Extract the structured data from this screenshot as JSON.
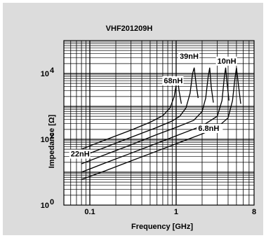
{
  "chart_data": {
    "type": "line",
    "title": "VHF201209H",
    "xlabel": "Frequency [GHz]",
    "ylabel": "Impedance [Ω]",
    "x_scale": "log",
    "y_scale": "log",
    "xlim": [
      0.05,
      8
    ],
    "ylim": [
      1,
      100000
    ],
    "grid": true,
    "x_ticks": [
      {
        "label": "0.1",
        "value": 0.1
      },
      {
        "label": "1",
        "value": 1
      },
      {
        "label": "8",
        "value": 8
      }
    ],
    "y_ticks": [
      {
        "label": "10",
        "exp": "0",
        "value": 1
      },
      {
        "label": "10",
        "exp": "2",
        "value": 100
      },
      {
        "label": "10",
        "exp": "4",
        "value": 10000
      }
    ],
    "series": [
      {
        "name": "68nH",
        "label_at": [
          0.72,
          5000
        ],
        "points": [
          [
            0.08,
            50
          ],
          [
            0.15,
            95
          ],
          [
            0.3,
            190
          ],
          [
            0.5,
            330
          ],
          [
            0.7,
            520
          ],
          [
            0.85,
            900
          ],
          [
            0.95,
            2000
          ],
          [
            1.0,
            4500
          ],
          [
            1.04,
            7000
          ],
          [
            1.08,
            3000
          ],
          [
            1.15,
            1200
          ]
        ]
      },
      {
        "name": "39nH",
        "label_at": [
          1.1,
          28000
        ],
        "points": [
          [
            0.08,
            30
          ],
          [
            0.15,
            57
          ],
          [
            0.3,
            115
          ],
          [
            0.6,
            230
          ],
          [
            0.9,
            360
          ],
          [
            1.1,
            500
          ],
          [
            1.3,
            900
          ],
          [
            1.45,
            2500
          ],
          [
            1.55,
            10000
          ],
          [
            1.62,
            15000
          ],
          [
            1.7,
            5000
          ],
          [
            1.8,
            1800
          ]
        ]
      },
      {
        "name": "10nH",
        "label_at": [
          3.0,
          20000
        ],
        "points": [
          [
            0.08,
            18
          ],
          [
            0.15,
            34
          ],
          [
            0.3,
            68
          ],
          [
            0.6,
            140
          ],
          [
            1.0,
            230
          ],
          [
            1.6,
            380
          ],
          [
            2.0,
            700
          ],
          [
            2.2,
            1800
          ],
          [
            2.35,
            8000
          ],
          [
            2.45,
            15000
          ],
          [
            2.55,
            4000
          ],
          [
            2.7,
            1300
          ]
        ]
      },
      {
        "name": "22nH",
        "label_at": [
          0.06,
          30
        ],
        "points": [
          [
            0.08,
            10
          ],
          [
            0.15,
            19
          ],
          [
            0.3,
            38
          ],
          [
            0.6,
            76
          ],
          [
            1.0,
            128
          ],
          [
            2.0,
            256
          ],
          [
            3.0,
            500
          ],
          [
            3.4,
            1500
          ],
          [
            3.6,
            7000
          ],
          [
            3.75,
            15000
          ],
          [
            3.9,
            5000
          ],
          [
            4.1,
            1500
          ]
        ]
      },
      {
        "name": "6.8nH",
        "label_at": [
          1.8,
          180
        ],
        "points": [
          [
            0.08,
            6
          ],
          [
            0.15,
            11
          ],
          [
            0.3,
            22
          ],
          [
            0.6,
            44
          ],
          [
            1.0,
            73
          ],
          [
            2.0,
            146
          ],
          [
            3.0,
            230
          ],
          [
            4.0,
            450
          ],
          [
            4.5,
            1500
          ],
          [
            4.8,
            7000
          ],
          [
            5.0,
            15000
          ],
          [
            5.3,
            4000
          ],
          [
            5.6,
            1200
          ]
        ]
      }
    ]
  }
}
